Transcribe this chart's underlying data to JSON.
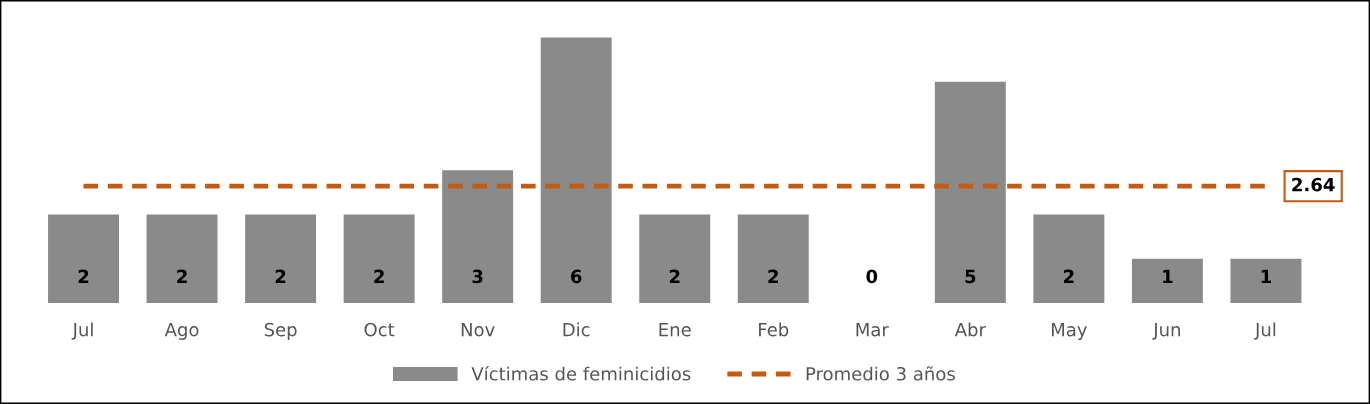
{
  "chart_data": {
    "type": "bar",
    "categories": [
      "Jul",
      "Ago",
      "Sep",
      "Oct",
      "Nov",
      "Dic",
      "Ene",
      "Feb",
      "Mar",
      "Abr",
      "May",
      "Jun",
      "Jul"
    ],
    "series": [
      {
        "name": "Víctimas de feminicidios",
        "color": "#8a8a8a",
        "values": [
          2,
          2,
          2,
          2,
          3,
          6,
          2,
          2,
          0,
          5,
          2,
          1,
          1
        ],
        "value_labels": [
          "2",
          "2",
          "2",
          "2",
          "3",
          "6",
          "2",
          "2",
          "0",
          "5",
          "2",
          "1",
          "1"
        ]
      },
      {
        "name": "Promedio 3 años",
        "type": "line",
        "color": "#c55a11",
        "line_style": "dashed",
        "values": [
          2.64,
          2.64,
          2.64,
          2.64,
          2.64,
          2.64,
          2.64,
          2.64,
          2.64,
          2.64,
          2.64,
          2.64,
          2.64
        ],
        "value_labels": [
          null,
          null,
          null,
          null,
          null,
          null,
          null,
          null,
          null,
          null,
          null,
          null,
          "2.64"
        ]
      }
    ],
    "legend": "bottom",
    "grid": false
  }
}
